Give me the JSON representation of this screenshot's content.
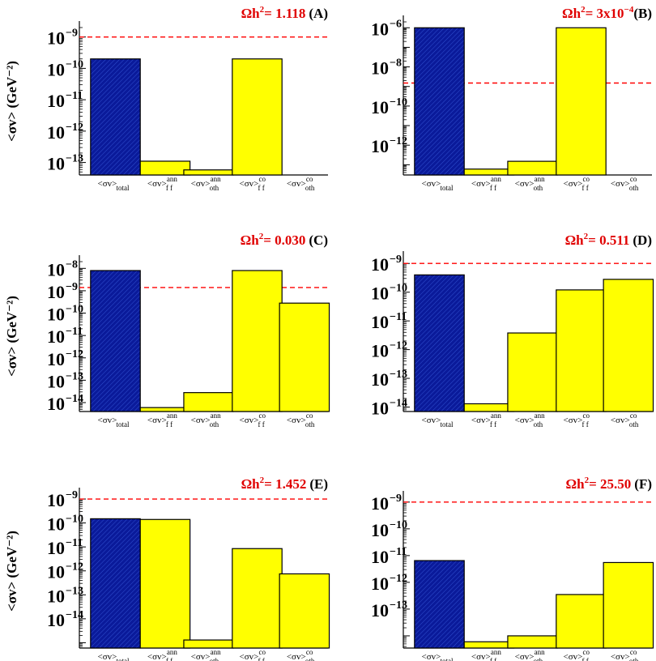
{
  "ylabel": "<σv> (GeV⁻²)",
  "category_labels": [
    {
      "base": "<σv>",
      "sub": "total",
      "sup": ""
    },
    {
      "base": "<σv>",
      "sub": "f f",
      "sup": "ann"
    },
    {
      "base": "<σv>",
      "sub": "oth",
      "sup": "ann"
    },
    {
      "base": "<σv>",
      "sub": "f f",
      "sup": "co"
    },
    {
      "base": "<σv>",
      "sub": "oth",
      "sup": "co"
    }
  ],
  "colors": {
    "total": "#0a1a9a",
    "component": "#ffff00",
    "reference_line": "#ff0000",
    "annotation": "#e00000"
  },
  "chart_data": [
    {
      "type": "bar",
      "panel": "(A)",
      "omega_label": "Ωh",
      "omega_value": "= 1.118",
      "yscale": "log",
      "ylim": [
        4e-14,
        2e-09
      ],
      "yticks": [
        {
          "exp": -9,
          "label": "10"
        },
        {
          "exp": -10,
          "label": "10"
        },
        {
          "exp": -11,
          "label": "10"
        },
        {
          "exp": -12,
          "label": "10"
        },
        {
          "exp": -13,
          "label": "10"
        }
      ],
      "reference_line": 1e-09,
      "values": [
        2e-10,
        1.1e-13,
        5.8e-14,
        2e-10,
        null
      ]
    },
    {
      "type": "bar",
      "panel": "(B)",
      "omega_label": "Ωh",
      "omega_value": "= 3x10",
      "omega_exp": "−4",
      "yscale": "log",
      "ylim": [
        3e-14,
        2e-06
      ],
      "yticks": [
        {
          "exp": -6,
          "label": "10"
        },
        {
          "exp": -8,
          "label": "10"
        },
        {
          "exp": -10,
          "label": "10"
        },
        {
          "exp": -12,
          "label": "10"
        }
      ],
      "reference_line": 1.5e-09,
      "values": [
        1e-06,
        6e-14,
        1.5e-13,
        1e-06,
        null
      ]
    },
    {
      "type": "bar",
      "panel": "(C)",
      "omega_label": "Ωh",
      "omega_value": "= 0.030",
      "yscale": "log",
      "ylim": [
        4e-15,
        2e-08
      ],
      "yticks": [
        {
          "exp": -8,
          "label": "10"
        },
        {
          "exp": -9,
          "label": "10"
        },
        {
          "exp": -10,
          "label": "10"
        },
        {
          "exp": -11,
          "label": "10"
        },
        {
          "exp": -12,
          "label": "10"
        },
        {
          "exp": -13,
          "label": "10"
        },
        {
          "exp": -14,
          "label": "10"
        }
      ],
      "reference_line": 1.4e-09,
      "values": [
        8e-09,
        6e-15,
        2.8e-14,
        8e-09,
        2.8e-10
      ]
    },
    {
      "type": "bar",
      "panel": "(D)",
      "omega_label": "Ωh",
      "omega_value": "= 0.511",
      "yscale": "log",
      "ylim": [
        7e-15,
        1.6e-09
      ],
      "yticks": [
        {
          "exp": -9,
          "label": "10"
        },
        {
          "exp": -10,
          "label": "10"
        },
        {
          "exp": -11,
          "label": "10"
        },
        {
          "exp": -12,
          "label": "10"
        },
        {
          "exp": -13,
          "label": "10"
        },
        {
          "exp": -14,
          "label": "10"
        }
      ],
      "reference_line": 1e-09,
      "values": [
        4e-10,
        1.3e-14,
        3.8e-12,
        1.2e-10,
        2.8e-10
      ]
    },
    {
      "type": "bar",
      "panel": "(E)",
      "omega_label": "Ωh",
      "omega_value": "= 1.452",
      "yscale": "log",
      "ylim": [
        6e-16,
        1.6e-09
      ],
      "yticks": [
        {
          "exp": -9,
          "label": "10"
        },
        {
          "exp": -10,
          "label": "10"
        },
        {
          "exp": -11,
          "label": "10"
        },
        {
          "exp": -12,
          "label": "10"
        },
        {
          "exp": -13,
          "label": "10"
        },
        {
          "exp": -14,
          "label": "10"
        }
      ],
      "reference_line": 1e-09,
      "values": [
        1.5e-10,
        1.4e-10,
        1.3e-15,
        8.5e-12,
        7.5e-13
      ]
    },
    {
      "type": "bar",
      "panel": "(F)",
      "omega_label": "Ωh",
      "omega_value": "= 25.50",
      "yscale": "log",
      "ylim": [
        3.5e-15,
        1.5e-09
      ],
      "yticks": [
        {
          "exp": -9,
          "label": "10"
        },
        {
          "exp": -10,
          "label": "10"
        },
        {
          "exp": -11,
          "label": "10"
        },
        {
          "exp": -12,
          "label": "10"
        },
        {
          "exp": -13,
          "label": "10"
        }
      ],
      "reference_line": 1e-09,
      "values": [
        6.5e-12,
        6e-15,
        1e-14,
        3.5e-13,
        5.5e-12
      ]
    }
  ]
}
